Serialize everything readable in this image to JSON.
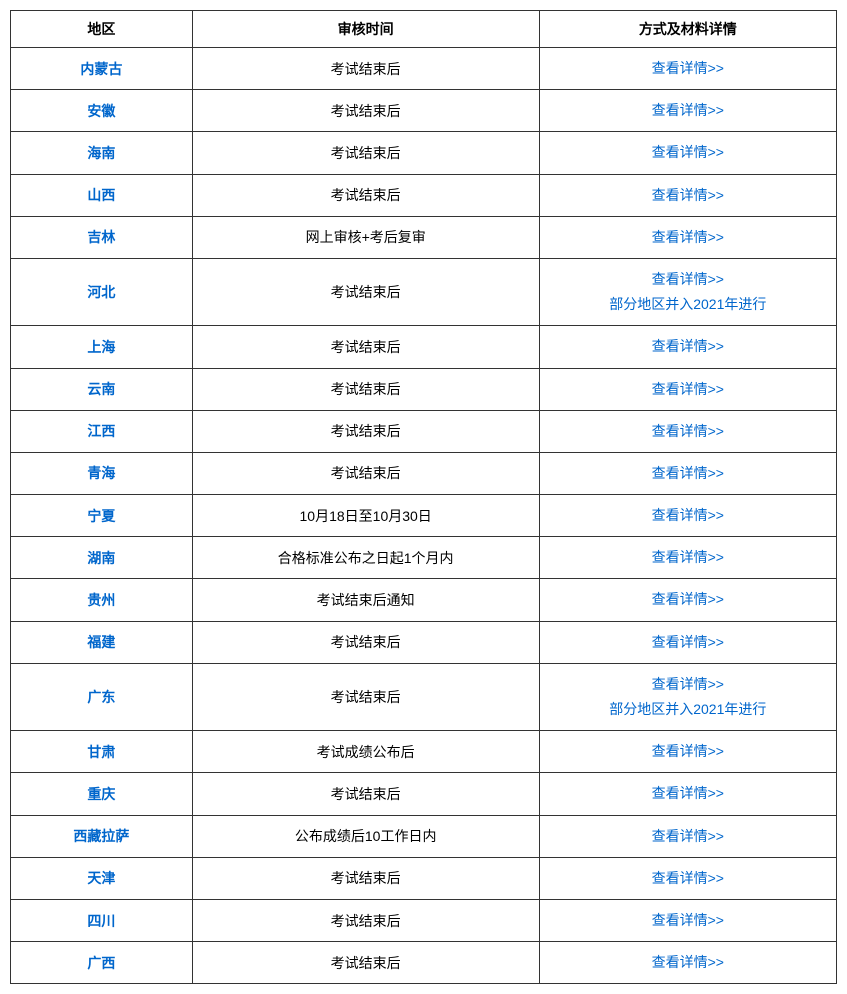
{
  "table": {
    "columns": [
      "地区",
      "审核时间",
      "方式及材料详情"
    ],
    "link_color": "#0066cc",
    "text_color": "#000000",
    "border_color": "#333333",
    "background_color": "#ffffff",
    "font_size": 14,
    "rows": [
      {
        "region": "内蒙古",
        "time": "考试结束后",
        "details": [
          "查看详情>>"
        ]
      },
      {
        "region": "安徽",
        "time": "考试结束后",
        "details": [
          "查看详情>>"
        ]
      },
      {
        "region": "海南",
        "time": "考试结束后",
        "details": [
          "查看详情>>"
        ]
      },
      {
        "region": "山西",
        "time": "考试结束后",
        "details": [
          "查看详情>>"
        ]
      },
      {
        "region": "吉林",
        "time": "网上审核+考后复审",
        "details": [
          "查看详情>>"
        ]
      },
      {
        "region": "河北",
        "time": "考试结束后",
        "details": [
          "查看详情>>",
          "部分地区并入2021年进行"
        ]
      },
      {
        "region": "上海",
        "time": "考试结束后",
        "details": [
          "查看详情>>"
        ]
      },
      {
        "region": "云南",
        "time": "考试结束后",
        "details": [
          "查看详情>>"
        ]
      },
      {
        "region": "江西",
        "time": "考试结束后",
        "details": [
          "查看详情>>"
        ]
      },
      {
        "region": "青海",
        "time": "考试结束后",
        "details": [
          "查看详情>>"
        ]
      },
      {
        "region": "宁夏",
        "time": "10月18日至10月30日",
        "details": [
          "查看详情>>"
        ]
      },
      {
        "region": "湖南",
        "time": "合格标准公布之日起1个月内",
        "details": [
          "查看详情>>"
        ]
      },
      {
        "region": "贵州",
        "time": "考试结束后通知",
        "details": [
          "查看详情>>"
        ]
      },
      {
        "region": "福建",
        "time": "考试结束后",
        "details": [
          "查看详情>>"
        ]
      },
      {
        "region": "广东",
        "time": "考试结束后",
        "details": [
          "查看详情>>",
          "部分地区并入2021年进行"
        ]
      },
      {
        "region": "甘肃",
        "time": "考试成绩公布后",
        "details": [
          "查看详情>>"
        ]
      },
      {
        "region": "重庆",
        "time": "考试结束后",
        "details": [
          "查看详情>>"
        ]
      },
      {
        "region": "西藏拉萨",
        "time": "公布成绩后10工作日内",
        "details": [
          "查看详情>>"
        ]
      },
      {
        "region": "天津",
        "time": "考试结束后",
        "details": [
          "查看详情>>"
        ]
      },
      {
        "region": "四川",
        "time": "考试结束后",
        "details": [
          "查看详情>>"
        ]
      },
      {
        "region": "广西",
        "time": "考试结束后",
        "details": [
          "查看详情>>"
        ]
      }
    ]
  }
}
